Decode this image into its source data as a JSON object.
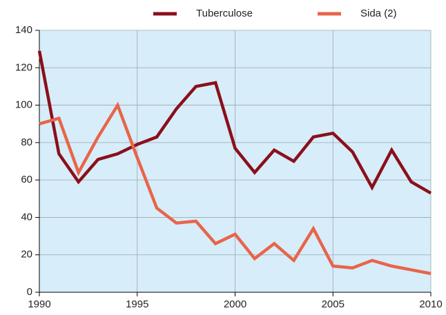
{
  "chart_data": {
    "type": "line",
    "x": [
      1990,
      1991,
      1992,
      1993,
      1994,
      1995,
      1996,
      1997,
      1998,
      1999,
      2000,
      2001,
      2002,
      2003,
      2004,
      2005,
      2006,
      2007,
      2008,
      2009,
      2010
    ],
    "series": [
      {
        "name": "Tuberculose",
        "color": "#8b0f1c",
        "values": [
          129,
          74,
          59,
          71,
          74,
          79,
          83,
          98,
          110,
          112,
          77,
          64,
          76,
          70,
          83,
          85,
          75,
          56,
          76,
          59,
          53
        ]
      },
      {
        "name": "Sida (2)",
        "color": "#e8654a",
        "values": [
          90,
          93,
          64,
          83,
          100,
          72,
          45,
          37,
          38,
          26,
          31,
          18,
          26,
          17,
          34,
          14,
          13,
          17,
          14,
          12,
          10
        ]
      }
    ],
    "xlim": [
      1990,
      2010
    ],
    "xticks": [
      1990,
      1995,
      2000,
      2005,
      2010
    ],
    "ylim": [
      0,
      140
    ],
    "yticks": [
      0,
      20,
      40,
      60,
      80,
      100,
      120,
      140
    ],
    "grid": true,
    "legend": "top"
  }
}
